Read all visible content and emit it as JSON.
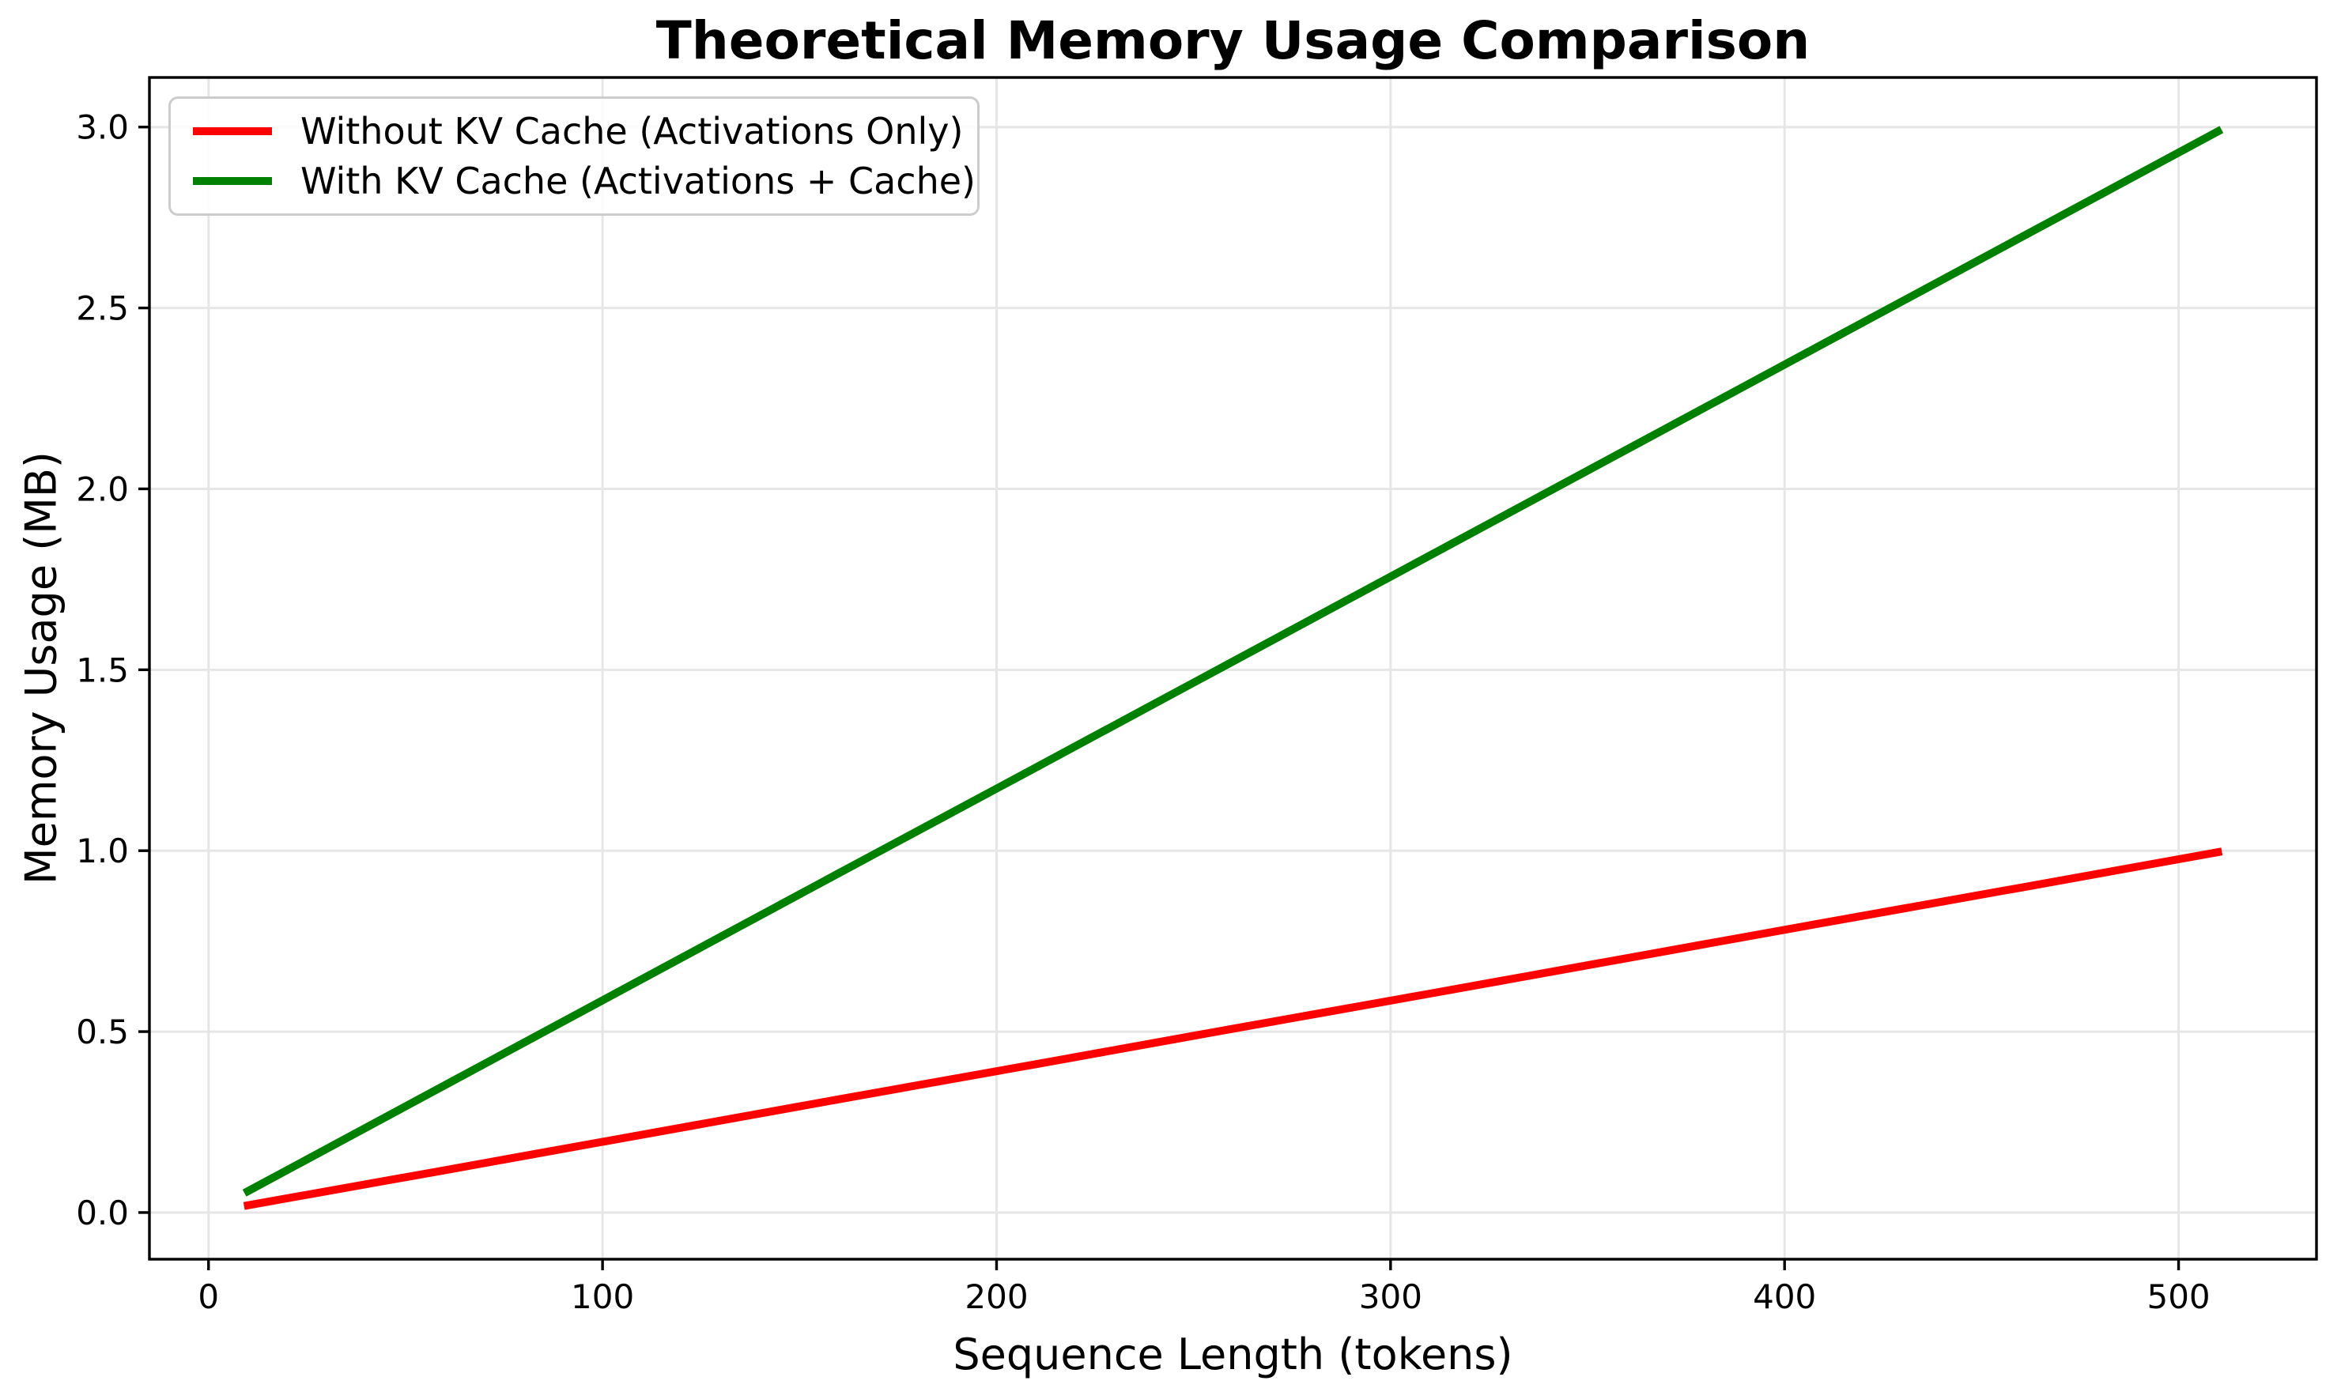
{
  "chart_data": {
    "type": "line",
    "title": "Theoretical Memory Usage Comparison",
    "xlabel": "Sequence Length (tokens)",
    "ylabel": "Memory Usage (MB)",
    "xlim": [
      -15,
      535
    ],
    "ylim": [
      -0.129,
      3.137
    ],
    "xticks": [
      0,
      100,
      200,
      300,
      400,
      500
    ],
    "xtick_labels": [
      "0",
      "100",
      "200",
      "300",
      "400",
      "500"
    ],
    "yticks": [
      0.0,
      0.5,
      1.0,
      1.5,
      2.0,
      2.5,
      3.0
    ],
    "ytick_labels": [
      "0.0",
      "0.5",
      "1.0",
      "1.5",
      "2.0",
      "2.5",
      "3.0"
    ],
    "grid": true,
    "grid_color": "#e6e6e6",
    "axis_color": "#000000",
    "background_color": "#ffffff",
    "legend_position": "upper-left",
    "x": [
      10,
      60,
      110,
      160,
      210,
      260,
      310,
      360,
      410,
      460,
      510
    ],
    "series": [
      {
        "name": "Without KV Cache (Activations Only)",
        "color": "#ff0000",
        "values": [
          0.02,
          0.117,
          0.215,
          0.313,
          0.41,
          0.508,
          0.605,
          0.703,
          0.801,
          0.898,
          0.996
        ]
      },
      {
        "name": "With KV Cache (Activations + Cache)",
        "color": "#008000",
        "values": [
          0.059,
          0.352,
          0.645,
          0.938,
          1.23,
          1.523,
          1.816,
          2.109,
          2.402,
          2.695,
          2.988
        ]
      }
    ]
  }
}
